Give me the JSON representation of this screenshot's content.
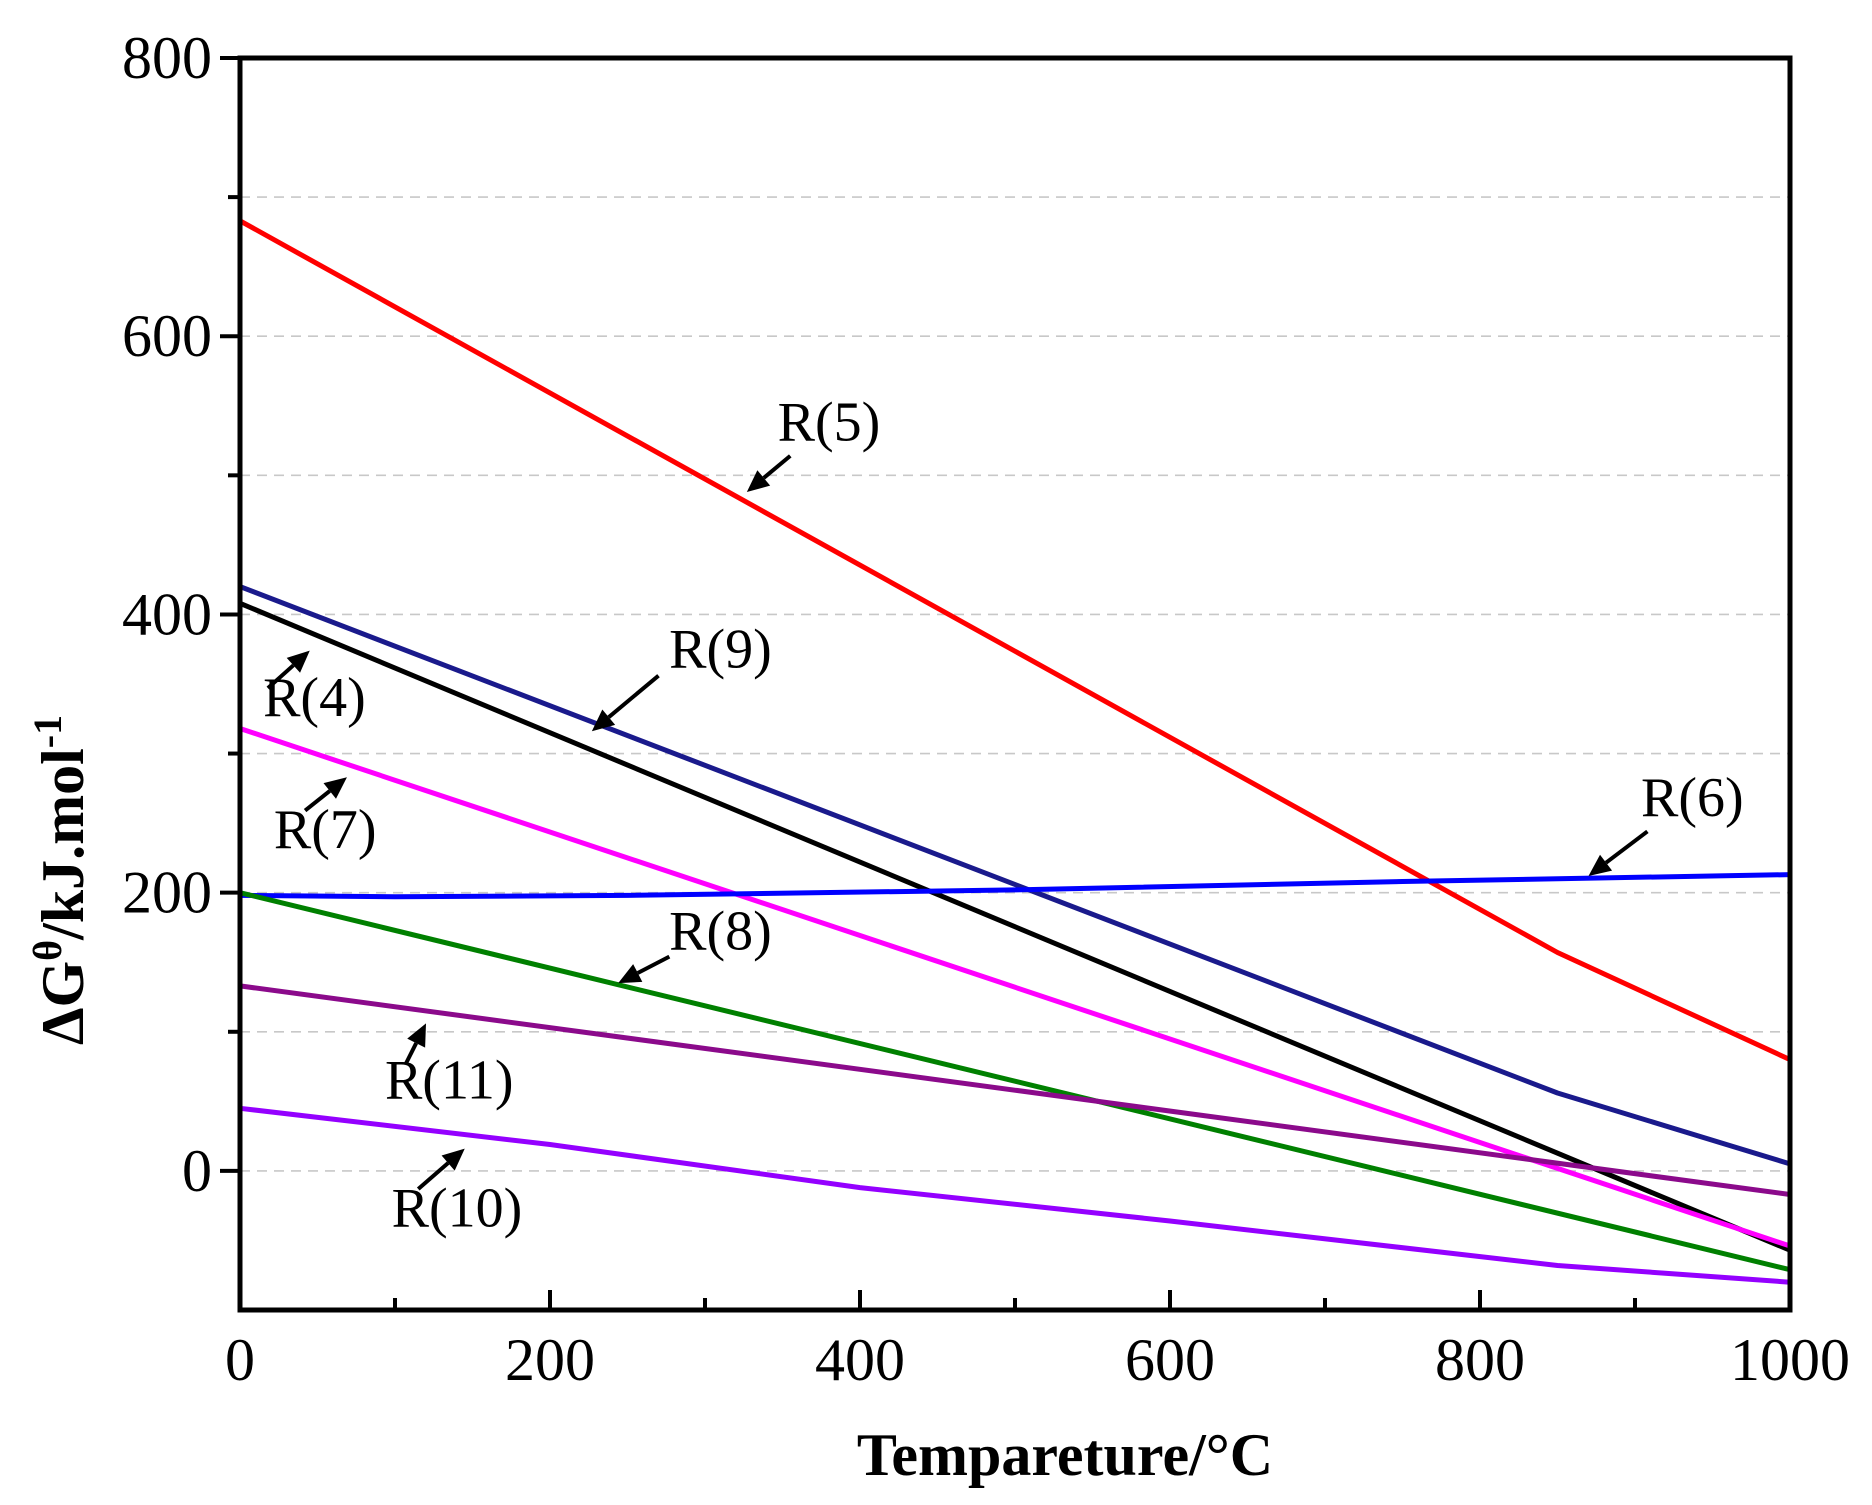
{
  "chart_data": {
    "type": "line",
    "title": "",
    "xlabel": "Tempareture/°C",
    "ylabel": "ΔGθ/kJ.mol-1",
    "ylabel_parts": {
      "prefix": "ΔG",
      "prefix_sup": "θ",
      "unit": "/kJ.mol",
      "unit_sup": "-1"
    },
    "xlim": [
      0,
      1000
    ],
    "ylim": [
      -100,
      800
    ],
    "x_ticks": [
      0,
      200,
      400,
      600,
      800,
      1000
    ],
    "x_tick_labels": [
      "0",
      "200",
      "400",
      "600",
      "800",
      "1000"
    ],
    "x_minor_ticks": [
      100,
      300,
      500,
      700,
      900
    ],
    "y_ticks": [
      0,
      200,
      400,
      600,
      800
    ],
    "y_tick_labels": [
      "0",
      "200",
      "400",
      "600",
      "800"
    ],
    "y_minor_ticks": [
      100,
      300,
      500,
      700
    ],
    "y_gridlines": [
      0,
      100,
      200,
      300,
      400,
      500,
      600,
      700
    ],
    "grid": "horizontal dashed",
    "legend": "none",
    "series": [
      {
        "name": "R(5)",
        "color": "#ff0000",
        "x": [
          0,
          850,
          1000
        ],
        "y": [
          683,
          157,
          80
        ]
      },
      {
        "name": "R(9)",
        "color": "#1a1a8c",
        "x": [
          0,
          850,
          1000
        ],
        "y": [
          420,
          56,
          5
        ]
      },
      {
        "name": "R(4)",
        "color": "#000000",
        "x": [
          0,
          1000
        ],
        "y": [
          408,
          -57
        ]
      },
      {
        "name": "R(7)",
        "color": "#ff00ff",
        "x": [
          0,
          1000
        ],
        "y": [
          318,
          -54
        ]
      },
      {
        "name": "R(6)",
        "color": "#0000ff",
        "x": [
          0,
          100,
          250,
          500,
          750,
          1000
        ],
        "y": [
          198,
          197,
          198,
          202,
          208,
          213
        ]
      },
      {
        "name": "R(8)",
        "color": "#008000",
        "x": [
          0,
          1000
        ],
        "y": [
          200,
          -71
        ]
      },
      {
        "name": "R(11)",
        "color": "#8b0a8b",
        "x": [
          0,
          1000
        ],
        "y": [
          133,
          -17
        ]
      },
      {
        "name": "R(10)",
        "color": "#9400ff",
        "x": [
          0,
          200,
          400,
          600,
          850,
          1000
        ],
        "y": [
          45,
          19,
          -12,
          -36,
          -68,
          -80
        ]
      }
    ],
    "annotations": [
      {
        "label": "R(5)",
        "text_at": [
          380,
          525
        ],
        "arrow_from": [
          355,
          514
        ],
        "arrow_to": [
          327,
          488
        ]
      },
      {
        "label": "R(9)",
        "text_at": [
          310,
          362
        ],
        "arrow_from": [
          270,
          356
        ],
        "arrow_to": [
          227,
          316
        ]
      },
      {
        "label": "R(4)",
        "text_at": [
          48,
          327
        ],
        "arrow_from": [
          18,
          347
        ],
        "arrow_to": [
          45,
          374
        ]
      },
      {
        "label": "R(7)",
        "text_at": [
          55,
          232
        ],
        "arrow_from": [
          42,
          259
        ],
        "arrow_to": [
          69,
          283
        ]
      },
      {
        "label": "R(6)",
        "text_at": [
          937,
          255
        ],
        "arrow_from": [
          908,
          244
        ],
        "arrow_to": [
          870,
          212
        ]
      },
      {
        "label": "R(8)",
        "text_at": [
          310,
          159
        ],
        "arrow_from": [
          277,
          154
        ],
        "arrow_to": [
          244,
          135
        ]
      },
      {
        "label": "R(11)",
        "text_at": [
          135,
          52
        ],
        "arrow_from": [
          107,
          77
        ],
        "arrow_to": [
          120,
          106
        ]
      },
      {
        "label": "R(10)",
        "text_at": [
          140,
          -40
        ],
        "arrow_from": [
          115,
          -13
        ],
        "arrow_to": [
          145,
          16
        ]
      }
    ]
  }
}
